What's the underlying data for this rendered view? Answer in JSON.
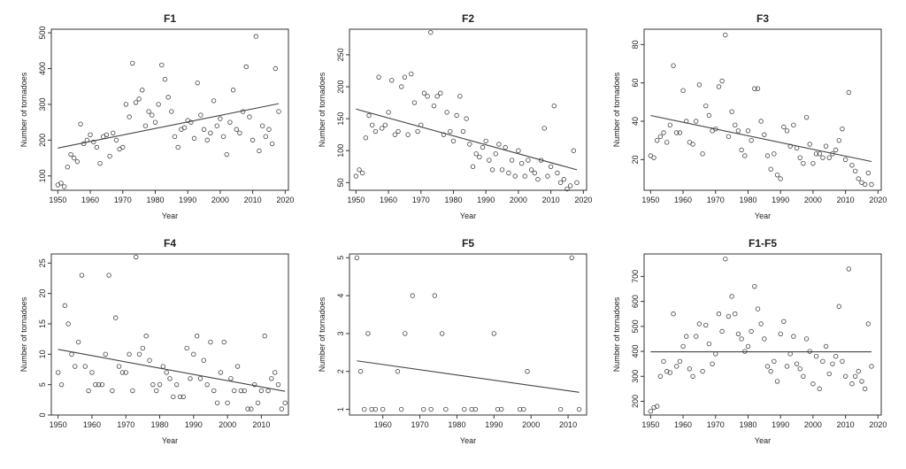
{
  "chart_data": [
    {
      "type": "scatter",
      "title": "F1",
      "xlabel": "Year",
      "ylabel": "Number of tornadoes",
      "xlim": [
        1948,
        2021
      ],
      "ylim": [
        60,
        510
      ],
      "xticks": [
        1950,
        1960,
        1970,
        1980,
        1990,
        2000,
        2010,
        2020
      ],
      "yticks": [
        100,
        200,
        300,
        400,
        500
      ],
      "x": [
        1950,
        1951,
        1952,
        1953,
        1954,
        1955,
        1956,
        1957,
        1958,
        1959,
        1960,
        1961,
        1962,
        1963,
        1964,
        1965,
        1966,
        1967,
        1968,
        1969,
        1970,
        1971,
        1972,
        1973,
        1974,
        1975,
        1976,
        1977,
        1978,
        1979,
        1980,
        1981,
        1982,
        1983,
        1984,
        1985,
        1986,
        1987,
        1988,
        1989,
        1990,
        1991,
        1992,
        1993,
        1994,
        1995,
        1996,
        1997,
        1998,
        1999,
        2000,
        2001,
        2002,
        2003,
        2004,
        2005,
        2006,
        2007,
        2008,
        2009,
        2010,
        2011,
        2012,
        2013,
        2014,
        2015,
        2016,
        2017,
        2018
      ],
      "y": [
        75,
        80,
        70,
        125,
        160,
        150,
        140,
        245,
        190,
        200,
        215,
        195,
        180,
        135,
        210,
        215,
        155,
        220,
        200,
        175,
        180,
        300,
        265,
        415,
        305,
        315,
        340,
        240,
        280,
        270,
        250,
        300,
        410,
        370,
        320,
        280,
        210,
        180,
        230,
        235,
        255,
        250,
        205,
        360,
        270,
        230,
        200,
        220,
        310,
        240,
        260,
        210,
        160,
        250,
        340,
        230,
        220,
        280,
        405,
        265,
        200,
        490,
        170,
        240,
        210,
        230,
        190,
        400,
        280
      ],
      "trend": [
        {
          "x": 1950,
          "y": 178
        },
        {
          "x": 2018,
          "y": 302
        }
      ]
    },
    {
      "type": "scatter",
      "title": "F2",
      "xlabel": "Year",
      "ylabel": "Number of tornadoes",
      "xlim": [
        1948,
        2021
      ],
      "ylim": [
        38,
        290
      ],
      "xticks": [
        1950,
        1960,
        1970,
        1980,
        1990,
        2000,
        2010,
        2020
      ],
      "yticks": [
        50,
        100,
        150,
        200,
        250
      ],
      "x": [
        1950,
        1951,
        1952,
        1953,
        1954,
        1955,
        1956,
        1957,
        1958,
        1959,
        1960,
        1961,
        1962,
        1963,
        1964,
        1965,
        1966,
        1967,
        1968,
        1969,
        1970,
        1971,
        1972,
        1973,
        1974,
        1975,
        1976,
        1977,
        1978,
        1979,
        1980,
        1981,
        1982,
        1983,
        1984,
        1985,
        1986,
        1987,
        1988,
        1989,
        1990,
        1991,
        1992,
        1993,
        1994,
        1995,
        1996,
        1997,
        1998,
        1999,
        2000,
        2001,
        2002,
        2003,
        2004,
        2005,
        2006,
        2007,
        2008,
        2009,
        2010,
        2011,
        2012,
        2013,
        2014,
        2015,
        2016,
        2017,
        2018
      ],
      "y": [
        60,
        70,
        65,
        120,
        155,
        140,
        130,
        215,
        135,
        140,
        160,
        210,
        125,
        130,
        200,
        215,
        125,
        220,
        175,
        130,
        140,
        190,
        185,
        285,
        170,
        185,
        190,
        125,
        160,
        130,
        115,
        155,
        185,
        130,
        150,
        110,
        75,
        95,
        90,
        105,
        115,
        85,
        70,
        95,
        110,
        70,
        105,
        65,
        85,
        60,
        100,
        80,
        60,
        85,
        70,
        65,
        55,
        85,
        135,
        60,
        75,
        170,
        65,
        50,
        55,
        40,
        45,
        100,
        50
      ],
      "trend": [
        {
          "x": 1950,
          "y": 165
        },
        {
          "x": 2018,
          "y": 70
        }
      ]
    },
    {
      "type": "scatter",
      "title": "F3",
      "xlabel": "Year",
      "ylabel": "Number of tornadoes",
      "xlim": [
        1948,
        2021
      ],
      "ylim": [
        4,
        88
      ],
      "xticks": [
        1950,
        1960,
        1970,
        1980,
        1990,
        2000,
        2010,
        2020
      ],
      "yticks": [
        20,
        40,
        60,
        80
      ],
      "x": [
        1950,
        1951,
        1952,
        1953,
        1954,
        1955,
        1956,
        1957,
        1958,
        1959,
        1960,
        1961,
        1962,
        1963,
        1964,
        1965,
        1966,
        1967,
        1968,
        1969,
        1970,
        1971,
        1972,
        1973,
        1974,
        1975,
        1976,
        1977,
        1978,
        1979,
        1980,
        1981,
        1982,
        1983,
        1984,
        1985,
        1986,
        1987,
        1988,
        1989,
        1990,
        1991,
        1992,
        1993,
        1994,
        1995,
        1996,
        1997,
        1998,
        1999,
        2000,
        2001,
        2002,
        2003,
        2004,
        2005,
        2006,
        2007,
        2008,
        2009,
        2010,
        2011,
        2012,
        2013,
        2014,
        2015,
        2016,
        2017,
        2018
      ],
      "y": [
        22,
        21,
        30,
        32,
        34,
        29,
        38,
        69,
        34,
        34,
        56,
        40,
        29,
        28,
        40,
        59,
        23,
        48,
        43,
        35,
        36,
        58,
        61,
        85,
        32,
        45,
        38,
        35,
        25,
        22,
        35,
        30,
        57,
        57,
        40,
        33,
        22,
        15,
        23,
        12,
        10,
        37,
        35,
        27,
        38,
        26,
        21,
        18,
        42,
        28,
        18,
        23,
        23,
        21,
        27,
        21,
        23,
        25,
        30,
        36,
        20,
        55,
        17,
        14,
        10,
        8,
        7,
        13,
        7
      ],
      "trend": [
        {
          "x": 1950,
          "y": 43
        },
        {
          "x": 2018,
          "y": 19
        }
      ]
    },
    {
      "type": "scatter",
      "title": "F4",
      "xlabel": "Year",
      "ylabel": "Number of tornadoes",
      "xlim": [
        1948,
        2018
      ],
      "ylim": [
        0,
        26.5
      ],
      "xticks": [
        1950,
        1960,
        1970,
        1980,
        1990,
        2000,
        2010
      ],
      "yticks": [
        0,
        5,
        10,
        15,
        20,
        25
      ],
      "x": [
        1950,
        1951,
        1952,
        1953,
        1954,
        1955,
        1956,
        1957,
        1958,
        1959,
        1960,
        1961,
        1962,
        1963,
        1964,
        1965,
        1966,
        1967,
        1968,
        1969,
        1970,
        1971,
        1972,
        1973,
        1974,
        1975,
        1976,
        1977,
        1978,
        1979,
        1980,
        1981,
        1982,
        1983,
        1984,
        1985,
        1986,
        1987,
        1988,
        1989,
        1990,
        1991,
        1992,
        1993,
        1994,
        1995,
        1996,
        1997,
        1998,
        1999,
        2000,
        2001,
        2002,
        2003,
        2004,
        2005,
        2006,
        2007,
        2008,
        2009,
        2010,
        2011,
        2012,
        2013,
        2014,
        2015,
        2016,
        2017
      ],
      "y": [
        7,
        5,
        18,
        15,
        10,
        8,
        12,
        23,
        8,
        4,
        7,
        5,
        5,
        5,
        10,
        23,
        4,
        16,
        8,
        7,
        7,
        10,
        4,
        26,
        10,
        11,
        13,
        9,
        5,
        4,
        5,
        8,
        7,
        6,
        3,
        5,
        3,
        3,
        11,
        6,
        10,
        13,
        6,
        9,
        5,
        12,
        4,
        2,
        7,
        12,
        2,
        6,
        4,
        8,
        4,
        4,
        1,
        1,
        5,
        2,
        4,
        13,
        4,
        6,
        7,
        5,
        1,
        2
      ],
      "trend": [
        {
          "x": 1950,
          "y": 10.8
        },
        {
          "x": 2017,
          "y": 3.9
        }
      ]
    },
    {
      "type": "scatter",
      "title": "F5",
      "xlabel": "Year",
      "ylabel": "Number of tornadoes",
      "xlim": [
        1951,
        2015
      ],
      "ylim": [
        0.85,
        5.1
      ],
      "xticks": [
        1960,
        1970,
        1980,
        1990,
        2000,
        2010
      ],
      "yticks": [
        1,
        2,
        3,
        4,
        5
      ],
      "x": [
        1953,
        1954,
        1955,
        1956,
        1957,
        1958,
        1960,
        1964,
        1965,
        1966,
        1968,
        1971,
        1973,
        1974,
        1976,
        1977,
        1982,
        1984,
        1985,
        1990,
        1991,
        1992,
        1997,
        1998,
        1999,
        2008,
        2011,
        2013
      ],
      "y": [
        5,
        2,
        1,
        3,
        1,
        1,
        1,
        2,
        1,
        3,
        4,
        1,
        1,
        4,
        3,
        1,
        1,
        1,
        1,
        3,
        1,
        1,
        1,
        1,
        2,
        1,
        5,
        1
      ],
      "trend": [
        {
          "x": 1953,
          "y": 2.28
        },
        {
          "x": 2013,
          "y": 1.45
        }
      ]
    },
    {
      "type": "scatter",
      "title": "F1-F5",
      "xlabel": "Year",
      "ylabel": "Number of tornadoes",
      "xlim": [
        1948,
        2021
      ],
      "ylim": [
        145,
        790
      ],
      "xticks": [
        1950,
        1960,
        1970,
        1980,
        1990,
        2000,
        2010,
        2020
      ],
      "yticks": [
        200,
        300,
        400,
        500,
        600,
        700
      ],
      "x": [
        1950,
        1951,
        1952,
        1953,
        1954,
        1955,
        1956,
        1957,
        1958,
        1959,
        1960,
        1961,
        1962,
        1963,
        1964,
        1965,
        1966,
        1967,
        1968,
        1969,
        1970,
        1971,
        1972,
        1973,
        1974,
        1975,
        1976,
        1977,
        1978,
        1979,
        1980,
        1981,
        1982,
        1983,
        1984,
        1985,
        1986,
        1987,
        1988,
        1989,
        1990,
        1991,
        1992,
        1993,
        1994,
        1995,
        1996,
        1997,
        1998,
        1999,
        2000,
        2001,
        2002,
        2003,
        2004,
        2005,
        2006,
        2007,
        2008,
        2009,
        2010,
        2011,
        2012,
        2013,
        2014,
        2015,
        2016,
        2017,
        2018
      ],
      "y": [
        160,
        175,
        180,
        300,
        360,
        320,
        315,
        550,
        340,
        360,
        420,
        460,
        330,
        300,
        460,
        510,
        320,
        505,
        430,
        350,
        390,
        550,
        480,
        770,
        540,
        620,
        550,
        470,
        450,
        400,
        420,
        480,
        660,
        570,
        510,
        450,
        340,
        320,
        360,
        280,
        470,
        520,
        340,
        390,
        460,
        350,
        330,
        300,
        450,
        400,
        270,
        380,
        250,
        360,
        420,
        310,
        350,
        380,
        580,
        360,
        300,
        730,
        270,
        300,
        320,
        280,
        250,
        510,
        340
      ],
      "trend": [
        {
          "x": 1950,
          "y": 398
        },
        {
          "x": 2018,
          "y": 398
        }
      ]
    }
  ]
}
